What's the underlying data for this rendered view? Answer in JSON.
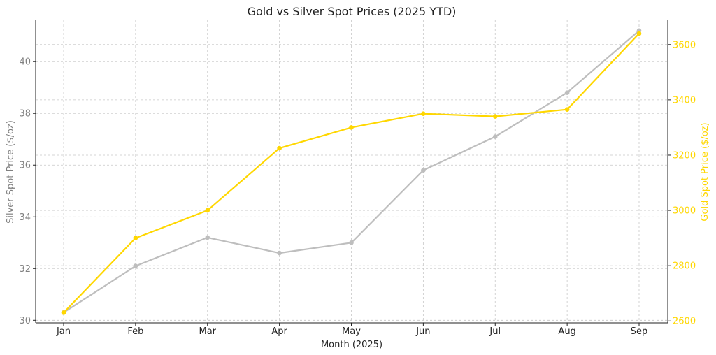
{
  "chart_data": {
    "type": "line",
    "title": "Gold vs Silver Spot Prices (2025 YTD)",
    "xlabel": "Month (2025)",
    "ylabel_left": "Silver Spot Price ($/oz)",
    "ylabel_right": "Gold Spot Price ($/oz)",
    "categories": [
      "Jan",
      "Feb",
      "Mar",
      "Apr",
      "May",
      "Jun",
      "Jul",
      "Aug",
      "Sep"
    ],
    "ylim_left": [
      29.9,
      41.6
    ],
    "ylim_right": [
      2593,
      3688
    ],
    "yticks_left": [
      30,
      32,
      34,
      36,
      38,
      40
    ],
    "yticks_right": [
      2600,
      2800,
      3000,
      3200,
      3400,
      3600
    ],
    "grid": true,
    "series": [
      {
        "name": "Silver",
        "axis": "left",
        "color": "#BEBEBE",
        "values": [
          30.3,
          32.1,
          33.2,
          32.6,
          33.0,
          35.8,
          37.1,
          38.8,
          41.2
        ]
      },
      {
        "name": "Gold",
        "axis": "right",
        "color": "#FFD700",
        "values": [
          2630,
          2900,
          3000,
          3225,
          3300,
          3350,
          3340,
          3365,
          3640
        ]
      }
    ]
  }
}
